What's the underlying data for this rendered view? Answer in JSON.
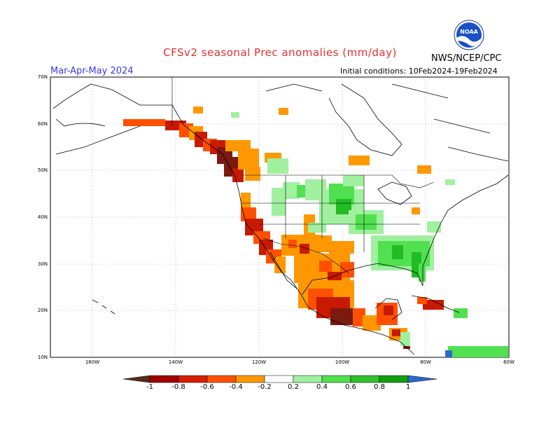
{
  "header": {
    "title": "CFSv2 seasonal Prec anomalies (mm/day)",
    "season": "Mar-Apr-May 2024",
    "initial_conditions": "Initial conditions: 10Feb2024-19Feb2024",
    "agency": "NWS/NCEP/CPC"
  },
  "axes": {
    "lat_labels": [
      "70N",
      "60N",
      "50N",
      "40N",
      "30N",
      "20N",
      "10N"
    ],
    "lon_labels": [
      "160W",
      "140W",
      "120W",
      "100W",
      "80W",
      "60W"
    ]
  },
  "colorbar": {
    "labels": [
      "-1",
      "-0.8",
      "-0.6",
      "-0.4",
      "-0.2",
      "0.2",
      "0.4",
      "0.6",
      "0.8",
      "1"
    ],
    "colors": [
      "#5a2a1a",
      "#a00000",
      "#d42000",
      "#ff5000",
      "#ff9800",
      "#ffffff",
      "#a0f0a0",
      "#50e050",
      "#30c030",
      "#10a010",
      "#2a6ad0"
    ]
  },
  "colors": {
    "title": "#e03030",
    "season": "#3a3ae0",
    "dry_extreme": "#7a1a10",
    "dry_strong": "#c81a00",
    "dry_mod": "#ff5000",
    "dry_weak": "#ff9800",
    "wet_weak": "#a0f0a0",
    "wet_mod": "#50e050",
    "wet_strong": "#22bb22",
    "wet_extreme": "#2a6ad0"
  },
  "anomaly_regions": [
    {
      "name": "pacific-northwest-coast",
      "category": "dry_extreme"
    },
    {
      "name": "northwest-interior",
      "category": "dry_weak"
    },
    {
      "name": "california-coast",
      "category": "dry_mod"
    },
    {
      "name": "southwest",
      "category": "dry_weak"
    },
    {
      "name": "texas",
      "category": "dry_weak"
    },
    {
      "name": "mexico",
      "category": "dry_strong"
    },
    {
      "name": "northern-plains",
      "category": "wet_mod"
    },
    {
      "name": "southeast",
      "category": "wet_mod"
    },
    {
      "name": "caribbean",
      "category": "dry_strong"
    }
  ]
}
